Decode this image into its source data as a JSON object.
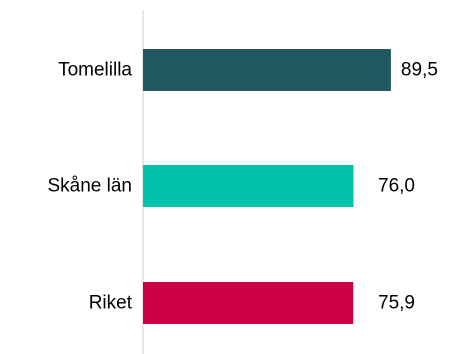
{
  "chart_data": {
    "type": "bar",
    "orientation": "horizontal",
    "categories": [
      "Tomelilla",
      "Skåne län",
      "Riket"
    ],
    "values": [
      89.5,
      76.0,
      75.9
    ],
    "value_labels": [
      "89,5",
      "76,0",
      "75,9"
    ],
    "colors": [
      "#215862",
      "#00C2A8",
      "#CC0044"
    ],
    "xlim": [
      0,
      100
    ],
    "grid": false,
    "legend": "none",
    "title": "",
    "xlabel": "",
    "ylabel": ""
  }
}
